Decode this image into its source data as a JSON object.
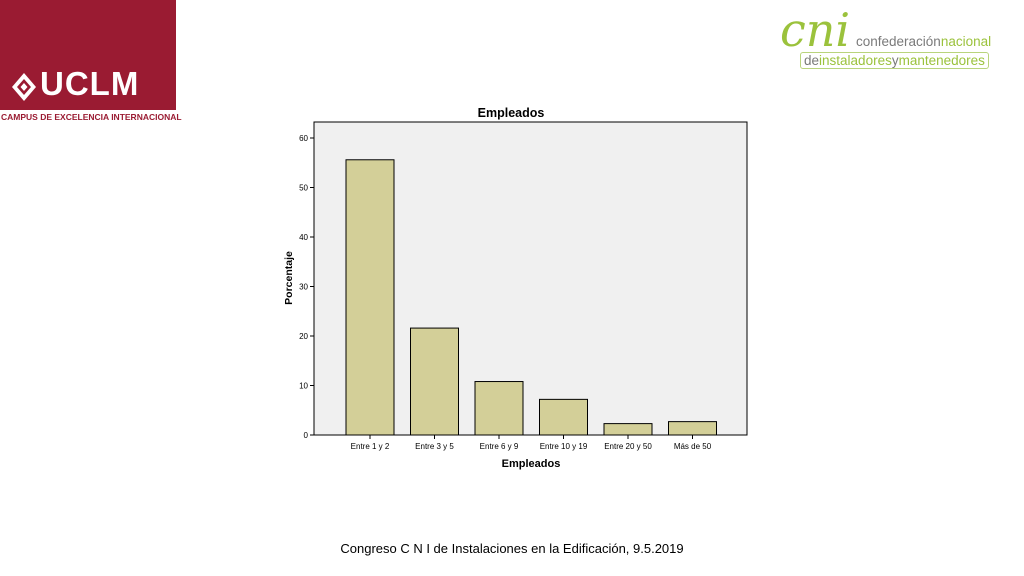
{
  "logos": {
    "uclm": {
      "name": "UCLM",
      "tagline": "CAMPUS DE EXCELENCIA INTERNACIONAL",
      "color": "#9a1b32"
    },
    "cni": {
      "mark": "cni",
      "line1_a": "confederación",
      "line1_b": "nacional",
      "line2_a": "de",
      "line2_b": "instaladores",
      "line2_c": "y",
      "line2_d": "mantenedores",
      "accent": "#9bc23c"
    }
  },
  "chart_data": {
    "type": "bar",
    "title": "Empleados",
    "xlabel": "Empleados",
    "ylabel": "Porcentaje",
    "categories": [
      "Entre 1 y 2",
      "Entre 3 y 5",
      "Entre 6 y 9",
      "Entre 10 y 19",
      "Entre 20 y 50",
      "Más de 50"
    ],
    "values": [
      55.6,
      21.6,
      10.8,
      7.2,
      2.3,
      2.7
    ],
    "ylim": [
      0,
      60
    ],
    "yticks": [
      0,
      10,
      20,
      30,
      40,
      50,
      60
    ],
    "grid": false,
    "legend": "none",
    "bar_color": "#d3cf98",
    "plot_background": "#f0f0f0"
  },
  "footer": {
    "text": "Congreso C N I de Instalaciones en la Edificación, 9.5.2019"
  }
}
